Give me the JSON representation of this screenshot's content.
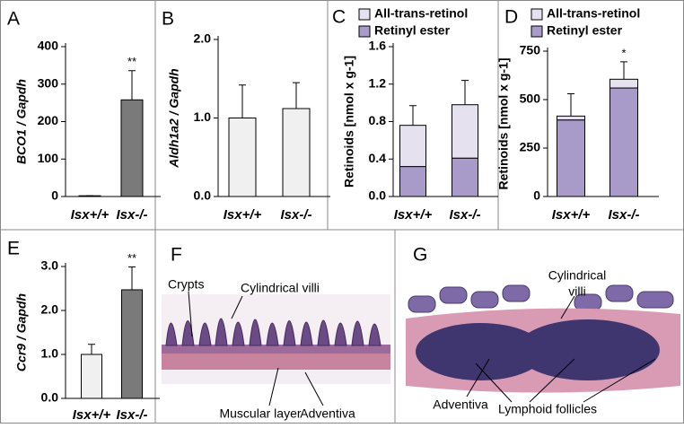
{
  "chart_data": [
    {
      "type": "bar",
      "panel": "A",
      "ylabel": "BCO1 / Gapdh",
      "categories": [
        "Isx+/+",
        "Isx-/-"
      ],
      "series": [
        {
          "colors": [
            "#f0f0f0",
            "#7a7a7a"
          ],
          "values": [
            2,
            258
          ],
          "errors": [
            0,
            78
          ]
        }
      ],
      "significance": [
        null,
        "**"
      ],
      "ylim": [
        0,
        400
      ],
      "yticks": [
        0,
        100,
        200,
        300,
        400
      ]
    },
    {
      "type": "bar",
      "panel": "B",
      "ylabel": "Aldh1a2 / Gapdh",
      "categories": [
        "Isx+/+",
        "Isx-/-"
      ],
      "series": [
        {
          "colors": [
            "#f0f0f0",
            "#f0f0f0"
          ],
          "values": [
            1.0,
            1.12
          ],
          "errors": [
            0.42,
            0.33
          ]
        }
      ],
      "ylim": [
        0,
        2.0
      ],
      "yticks": [
        {
          "value": 0,
          "label": "0.0"
        },
        {
          "value": 1,
          "label": "1.0"
        },
        {
          "value": 2,
          "label": "2.0"
        }
      ]
    },
    {
      "type": "bar",
      "stacked": true,
      "panel": "C",
      "ylabel": "Retinoids [nmol x g-1]",
      "categories": [
        "Isx+/+",
        "Isx-/-"
      ],
      "series": [
        {
          "name": "Retinyl ester",
          "color": "#a99bc9",
          "values": [
            0.32,
            0.41
          ]
        },
        {
          "name": "All-trans-retinol",
          "color": "#e6e1ef",
          "values": [
            0.44,
            0.57
          ],
          "errors": [
            0.21,
            0.26
          ]
        }
      ],
      "ylim": [
        0,
        1.6
      ],
      "yticks": [
        {
          "value": 0,
          "label": "0.0"
        },
        0.4,
        0.8,
        1.2,
        1.6
      ]
    },
    {
      "type": "bar",
      "stacked": true,
      "panel": "D",
      "ylabel": "Retinoids [nmol x g-1]",
      "categories": [
        "Isx+/+",
        "Isx-/-"
      ],
      "series": [
        {
          "name": "Retinyl ester",
          "color": "#a99bc9",
          "values": [
            395,
            560
          ]
        },
        {
          "name": "All-trans-retinol",
          "color": "#e6e1ef",
          "values": [
            20,
            45
          ],
          "errors": [
            115,
            90
          ]
        }
      ],
      "significance": [
        null,
        "*"
      ],
      "ylim": [
        0,
        750
      ],
      "yticks": [
        0,
        250,
        500,
        750
      ]
    },
    {
      "type": "bar",
      "panel": "E",
      "ylabel": "Ccr9 / Gapdh",
      "categories": [
        "Isx+/+",
        "Isx-/-"
      ],
      "series": [
        {
          "colors": [
            "#f0f0f0",
            "#7a7a7a"
          ],
          "values": [
            1.0,
            2.47
          ],
          "errors": [
            0.23,
            0.52
          ]
        }
      ],
      "significance": [
        null,
        "**"
      ],
      "ylim": [
        0,
        3.0
      ],
      "yticks": [
        {
          "value": 0,
          "label": "0.0"
        },
        {
          "value": 1,
          "label": "1.0"
        },
        {
          "value": 2,
          "label": "2.0"
        },
        {
          "value": 3,
          "label": "3.0"
        }
      ]
    }
  ],
  "images": [
    {
      "panel": "F",
      "labels": [
        "Crypts",
        "Cylindrical villi",
        "Muscular layer",
        "Adventiva"
      ]
    },
    {
      "panel": "G",
      "labels": [
        "Cylindrical",
        "villi",
        "Adventiva",
        "Lymphoid follicles"
      ]
    }
  ]
}
